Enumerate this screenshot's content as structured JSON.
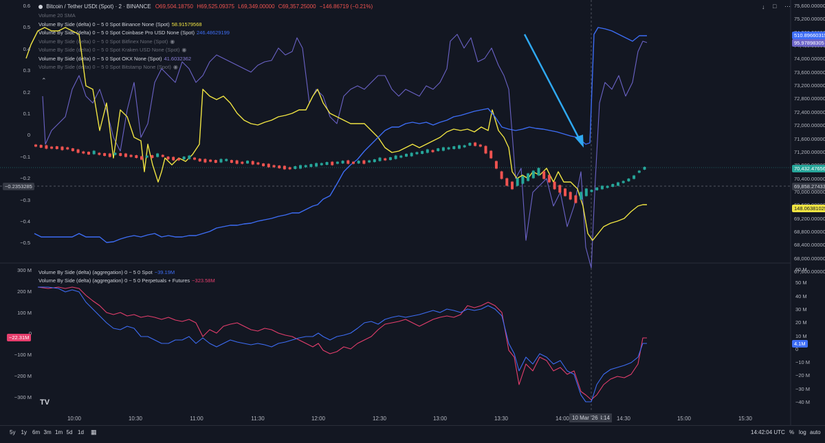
{
  "header": {
    "symbol": "Bitcoin / Tether USDt (Spot) · 2 · BINANCE",
    "open": "O69,504.18750",
    "high": "H69,525.09375",
    "low": "L69,349.00000",
    "close": "C69,357.25000",
    "change": "−146.86719 (−0.21%)"
  },
  "indicators": [
    {
      "name": "Volume 20 SMA",
      "value": "",
      "dim": true,
      "color": "#6a6d78"
    },
    {
      "name": "Volume By Side (delta) 0 ~ 5 0 Spot Binance None (Spot)",
      "value": "58.91579568",
      "dim": false,
      "color": "#f0e442"
    },
    {
      "name": "Volume By Side (delta) 0 ~ 5 0 Spot Coinbase Pro USD None (Spot)",
      "value": "246.48629199",
      "dim": false,
      "color": "#3d6df5"
    },
    {
      "name": "Volume By Side (delta) 0 ~ 5 0 Spot Bitfinex None (Spot)",
      "value": "",
      "dim": true,
      "color": "#6a6d78",
      "eye": true
    },
    {
      "name": "Volume By Side (delta) 0 ~ 5 0 Spot Kraken USD None (Spot)",
      "value": "",
      "dim": true,
      "color": "#6a6d78",
      "eye": true
    },
    {
      "name": "Volume By Side (delta) 0 ~ 5 0 Spot OKX None (Spot)",
      "value": "41.6032362",
      "dim": false,
      "color": "#8a7fd8"
    },
    {
      "name": "Volume By Side (delta) 0 ~ 5 0 Spot Bitstamp None (Spot)",
      "value": "",
      "dim": true,
      "color": "#6a6d78",
      "eye": true
    }
  ],
  "lower_indicators": [
    {
      "name": "Volume By Side (delta) (aggregation) 0 ~ 5 0 Spot",
      "value": "−39.19M",
      "color": "#3d6df5"
    },
    {
      "name": "Volume By Side (delta) (aggregation) 0 ~ 5 0 Perpetuals + Futures",
      "value": "−323.58M",
      "color": "#e63e6d"
    }
  ],
  "left_axis_top": [
    "0.6",
    "0.5",
    "0.4",
    "0.3",
    "0.2",
    "0.1",
    "0",
    "−0.1",
    "−0.2",
    "−0.3",
    "−0.4",
    "−0.5"
  ],
  "right_axis_top": [
    "75,600.00000",
    "75,200.00000",
    "74,800.00000",
    "74,400.00000",
    "74,000.00000",
    "73,600.00000",
    "73,200.00000",
    "72,800.00000",
    "72,400.00000",
    "72,000.00000",
    "71,600.00000",
    "71,200.00000",
    "70,800.00000",
    "70,400.00000",
    "70,000.00000",
    "69,600.00000",
    "69,200.00000",
    "68,800.00000",
    "68,400.00000",
    "68,000.00000",
    "67,600.00000"
  ],
  "left_axis_bottom": [
    "300 M",
    "200 M",
    "100 M",
    "0",
    "−100 M",
    "−200 M",
    "−300 M"
  ],
  "right_axis_bottom": [
    "60 M",
    "50 M",
    "40 M",
    "30 M",
    "20 M",
    "10 M",
    "0",
    "−10 M",
    "−20 M",
    "−30 M",
    "−40 M"
  ],
  "x_axis": [
    "10:00",
    "10:30",
    "11:00",
    "11:30",
    "12:00",
    "12:30",
    "13:00",
    "13:30",
    "14:00",
    "14:14",
    "14:30",
    "15:00",
    "15:30"
  ],
  "crosshair_label": "10 Mar '26",
  "badges": {
    "price_blue": "510.89660315",
    "price_purple": "95.97898305",
    "price_current": "70,432.47656",
    "price_cross": "69,858.27433",
    "price_yellow": "148.06381029",
    "left_cross": "−0.2353285",
    "left_bottom": "−22.31M",
    "right_bottom": "4.1M"
  },
  "footer": {
    "ranges": [
      "5y",
      "1y",
      "6m",
      "3m",
      "1m",
      "5d",
      "1d"
    ],
    "time": "14:42:04 UTC",
    "percent": "%",
    "log": "log",
    "auto": "auto"
  },
  "colors": {
    "background": "#131722",
    "yellow": "#f0e442",
    "blue": "#3d6df5",
    "purple": "#6b63c7",
    "red": "#e63e6d",
    "candle_up": "#26a69a",
    "candle_down": "#ef5350",
    "arrow": "#2fa8f0"
  }
}
